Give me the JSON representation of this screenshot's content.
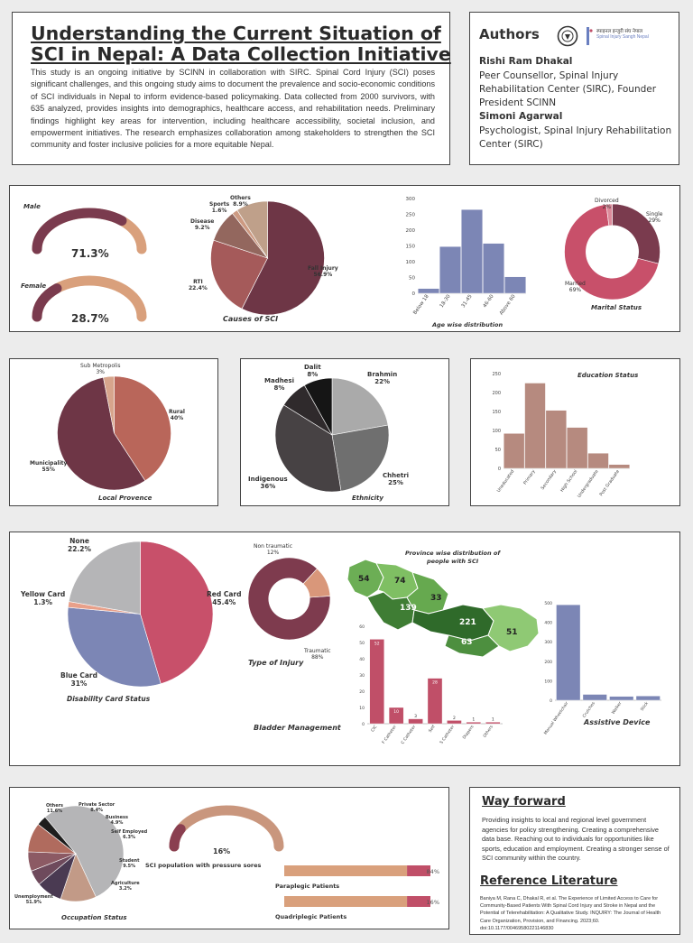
{
  "header": {
    "title_line1": "Understanding the Current Situation of",
    "title_line2": "SCI in Nepal: A Data Collection Initiative",
    "abstract": "This study is an ongoing initiative by SCINN in collaboration with SIRC. Spinal Cord Injury (SCI) poses significant challenges, and this ongoing study aims to document the prevalence and socio-economic conditions of SCI individuals in Nepal to inform evidence-based policymaking. Data collected from 2000 survivors, with 635 analyzed, provides insights into demographics, healthcare access, and rehabilitation needs. Preliminary findings highlight key areas for intervention, including healthcare accessibility, societal inclusion, and empowerment initiatives. The research emphasizes collaboration among stakeholders to strengthen the SCI community and foster inclusive policies for a more equitable Nepal."
  },
  "authors": {
    "heading": "Authors",
    "logo_text": "स्पाइनल इन्जुरी संघ नेपाल",
    "logo_subtext": "Spinal Injury Sangh Nepal",
    "a1_name": "Rishi Ram Dhakal",
    "a1_role": "Peer Counsellor, Spinal Injury Rehabilitation Center (SIRC), Founder President SCINN",
    "a2_name": "Simoni Agarwal",
    "a2_role": "Psychologist, Spinal Injury Rehabilitation Center (SIRC)"
  },
  "gender": {
    "male_label": "Male",
    "male_pct": "71.3%",
    "male_value": 71.3,
    "female_label": "Female",
    "female_pct": "28.7%",
    "female_value": 28.7
  },
  "chart_data": [
    {
      "type": "pie",
      "title": "Causes of SCI",
      "labels": [
        "Fall Injury",
        "RTI",
        "Disease",
        "Sports",
        "Others"
      ],
      "display": [
        "56.9%",
        "22.4%",
        "9.2%",
        "1.6%",
        "8.9%"
      ],
      "values": [
        56.9,
        22.4,
        9.2,
        1.6,
        8.9
      ],
      "colors": [
        "#6e3646",
        "#a55a5a",
        "#93675e",
        "#cd9a82",
        "#bfa08a"
      ]
    },
    {
      "type": "bar",
      "title": "Age wise distribution",
      "categories": [
        "Below 18",
        "18-30",
        "31-45",
        "46-60",
        "Above 60"
      ],
      "values": [
        15,
        148,
        265,
        158,
        52
      ],
      "yticks": [
        "0",
        "50",
        "100",
        "150",
        "200",
        "250",
        "300"
      ],
      "ylim": [
        0,
        300
      ],
      "color": "#7c86b5"
    },
    {
      "type": "pie",
      "title": "Marital Status",
      "labels": [
        "Single",
        "Married",
        "Divorced"
      ],
      "display": [
        "29%",
        "69%",
        "2%"
      ],
      "values": [
        29,
        69,
        2
      ],
      "colors": [
        "#7a3b4e",
        "#c8506a",
        "#dc8a9a"
      ]
    },
    {
      "type": "pie",
      "title": "Local Provence",
      "labels": [
        "Rural",
        "Municipality",
        "Sub Metropolis"
      ],
      "display": [
        "40%",
        "55%",
        "3%"
      ],
      "values": [
        40,
        55,
        3
      ],
      "colors": [
        "#b9665a",
        "#6e3646",
        "#d7a58c"
      ]
    },
    {
      "type": "pie",
      "title": "Ethnicity",
      "labels": [
        "Brahmin",
        "Chhetri",
        "Indigenous",
        "Madhesi",
        "Dalit"
      ],
      "display": [
        "22%",
        "25%",
        "36%",
        "8%",
        "8%"
      ],
      "values": [
        22,
        25,
        36,
        8,
        8
      ],
      "colors": [
        "#aaaaaa",
        "#6f6f6f",
        "#474244",
        "#2f2a2c",
        "#151515"
      ]
    },
    {
      "type": "bar",
      "title": "Education Status",
      "categories": [
        "Uneducated",
        "Primary",
        "Secondary",
        "High School",
        "Undergraduate",
        "Post Graduate"
      ],
      "values": [
        92,
        225,
        153,
        108,
        40,
        10
      ],
      "yticks": [
        "0",
        "50",
        "100",
        "150",
        "200",
        "250"
      ],
      "ylim": [
        0,
        250
      ],
      "color": "#b68a7f"
    },
    {
      "type": "pie",
      "title": "Disability Card Status",
      "labels": [
        "Red Card",
        "Blue Card",
        "Yellow Card",
        "None"
      ],
      "display": [
        "45.4%",
        "31%",
        "1.3%",
        "22.2%"
      ],
      "values": [
        45.4,
        31,
        1.3,
        22.2
      ],
      "colors": [
        "#c8506a",
        "#7c86b5",
        "#e8a08a",
        "#b5b5b7"
      ]
    },
    {
      "type": "pie",
      "title": "Type of Injury",
      "labels": [
        "Traumatic",
        "Non traumatic"
      ],
      "display": [
        "88%",
        "12%"
      ],
      "values": [
        88,
        12
      ],
      "colors": [
        "#7e3b4e",
        "#d9977a"
      ]
    },
    {
      "type": "bar",
      "title": "Bladder Management",
      "categories": [
        "CIC",
        "F Catheter",
        "C Catheter",
        "Self",
        "S Catheter",
        "Diapers",
        "Others"
      ],
      "values": [
        52,
        10,
        3,
        28,
        2,
        1,
        1
      ],
      "yticks": [
        "0",
        "10",
        "20",
        "30",
        "40",
        "50",
        "60"
      ],
      "ylim": [
        0,
        60
      ],
      "color": "#c04f68"
    },
    {
      "type": "bar",
      "title": "Assistive Device",
      "categories": [
        "Manual Wheelchair",
        "Crutches",
        "Walker",
        "Stick"
      ],
      "values": [
        490,
        30,
        20,
        22
      ],
      "yticks": [
        "0",
        "100",
        "200",
        "300",
        "400",
        "500"
      ],
      "ylim": [
        0,
        500
      ],
      "color": "#7c86b5"
    },
    {
      "type": "pie",
      "title": "Occupation Status",
      "labels": [
        "Unemployment",
        "Others",
        "Private Sector",
        "Business",
        "Self Employed",
        "Student",
        "Agriculture"
      ],
      "display": [
        "51.9%",
        "11.6%",
        "8.4%",
        "4.9%",
        "6.3%",
        "9.5%",
        "3.2%"
      ],
      "values": [
        51.9,
        11.6,
        8.4,
        4.9,
        6.3,
        9.5,
        3.2
      ],
      "colors": [
        "#b5b5b7",
        "#c29a87",
        "#4a3a52",
        "#6e4a5c",
        "#8c5a64",
        "#b06b5e",
        "#1d1d1d"
      ]
    },
    {
      "type": "bar",
      "title": "",
      "categories": [
        "Paraplegic Patients",
        "Quadriplegic Patients"
      ],
      "values": [
        84,
        16
      ],
      "display": [
        "84%",
        "16%"
      ],
      "colors": [
        "#d9a07c",
        "#c04f68"
      ]
    }
  ],
  "map": {
    "title_line1": "Province wise distribution of",
    "title_line2": "people with SCI",
    "values": [
      "54",
      "74",
      "33",
      "139",
      "221",
      "63",
      "51"
    ]
  },
  "pressure": {
    "label": "SCI population with pressure sores",
    "pct": "16%",
    "value": 16
  },
  "way_forward": {
    "heading": "Way forward",
    "text": "Providing insights to local and regional level government agencies for policy strengthening. Creating a comprehensive data base. Reaching out to individuals for opportunities like sports, education and employment. Creating a stronger sense of SCI community within the country."
  },
  "references": {
    "heading": "Reference Literature",
    "text": "Baniya M, Rana C, Dhakal R, et al. The Experience of Limited Access to Care for Community-Based Patients With Spinal Cord Injury and Stroke in Nepal and the Potential of Telerehabilitation: A Qualitative Study. INQUIRY: The Journal of Health Care Organization, Provision, and Financing. 2023;60. doi:10.1177/00469580221146830"
  }
}
